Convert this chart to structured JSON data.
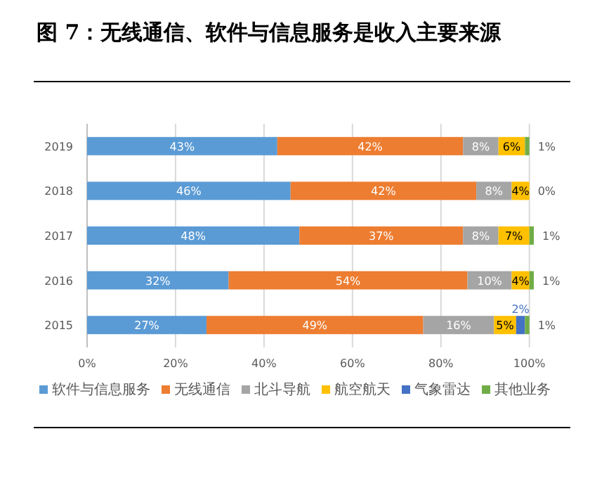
{
  "chart_data": {
    "type": "bar",
    "title": "图 7：无线通信、软件与信息服务是收入主要来源",
    "orientation": "horizontal",
    "stacked": true,
    "categories": [
      "2019",
      "2018",
      "2017",
      "2016",
      "2015"
    ],
    "series": [
      {
        "name": "软件与信息服务",
        "color": "#5b9bd5",
        "values": [
          43,
          46,
          48,
          32,
          27
        ],
        "value_labels": [
          "43%",
          "46%",
          "48%",
          "32%",
          "27%"
        ]
      },
      {
        "name": "无线通信",
        "color": "#ed7d31",
        "values": [
          42,
          42,
          37,
          54,
          49
        ],
        "value_labels": [
          "42%",
          "42%",
          "37%",
          "54%",
          "49%"
        ]
      },
      {
        "name": "北斗导航",
        "color": "#a5a5a5",
        "values": [
          8,
          8,
          8,
          10,
          16
        ],
        "value_labels": [
          "8%",
          "8%",
          "8%",
          "10%",
          "16%"
        ]
      },
      {
        "name": "航空航天",
        "color": "#ffc000",
        "values": [
          6,
          4,
          7,
          4,
          5
        ],
        "value_labels": [
          "6%",
          "4%",
          "7%",
          "4%",
          "5%"
        ]
      },
      {
        "name": "气象雷达",
        "color": "#4472c4",
        "values": [
          0,
          0,
          0,
          0,
          2
        ],
        "value_labels": [
          null,
          null,
          null,
          null,
          "2%"
        ]
      },
      {
        "name": "其他业务",
        "color": "#70ad47",
        "values": [
          1,
          0,
          1,
          1,
          1
        ],
        "value_labels": [
          "1%",
          "0%",
          "1%",
          "1%",
          "1%"
        ]
      }
    ],
    "xlim": [
      0,
      101
    ],
    "xticks": [
      {
        "value": 0,
        "label": "0%"
      },
      {
        "value": 20,
        "label": "20%"
      },
      {
        "value": 40,
        "label": "40%"
      },
      {
        "value": 60,
        "label": "60%"
      },
      {
        "value": 80,
        "label": "80%"
      },
      {
        "value": 100,
        "label": "100%"
      }
    ],
    "grid": "x",
    "legend": "bottom"
  }
}
